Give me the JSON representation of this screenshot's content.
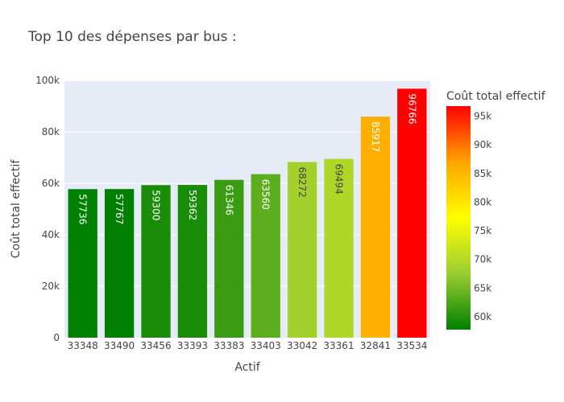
{
  "chart_data": {
    "type": "bar",
    "title": "Top 10 des dépenses par bus :",
    "xlabel": "Actif",
    "ylabel": "Coût total effectif",
    "categories": [
      "33348",
      "33490",
      "33456",
      "33393",
      "33383",
      "33403",
      "33042",
      "33361",
      "32841",
      "33534"
    ],
    "values": [
      57736,
      57767,
      59300,
      59362,
      61346,
      63560,
      68272,
      69494,
      85917,
      96766
    ],
    "value_labels": [
      "57736",
      "57767",
      "59300",
      "59362",
      "61346",
      "63560",
      "68272",
      "69494",
      "85917",
      "96766"
    ],
    "ylim": [
      0,
      100000
    ],
    "yticks": [
      0,
      20000,
      40000,
      60000,
      80000,
      100000
    ],
    "ytick_labels": [
      "0",
      "20k",
      "40k",
      "60k",
      "80k",
      "100k"
    ],
    "grid": true,
    "colorbar": {
      "title": "Coût total effectif",
      "range": [
        57736,
        96766
      ],
      "ticks": [
        60000,
        65000,
        70000,
        75000,
        80000,
        85000,
        90000,
        95000
      ],
      "tick_labels": [
        "60k",
        "65k",
        "70k",
        "75k",
        "80k",
        "85k",
        "90k",
        "95k"
      ],
      "colorscale": [
        "#008000",
        "#9acd32",
        "#ffff00",
        "#ffa500",
        "#ff0000"
      ]
    },
    "plot_background": "#e5ecf6"
  }
}
